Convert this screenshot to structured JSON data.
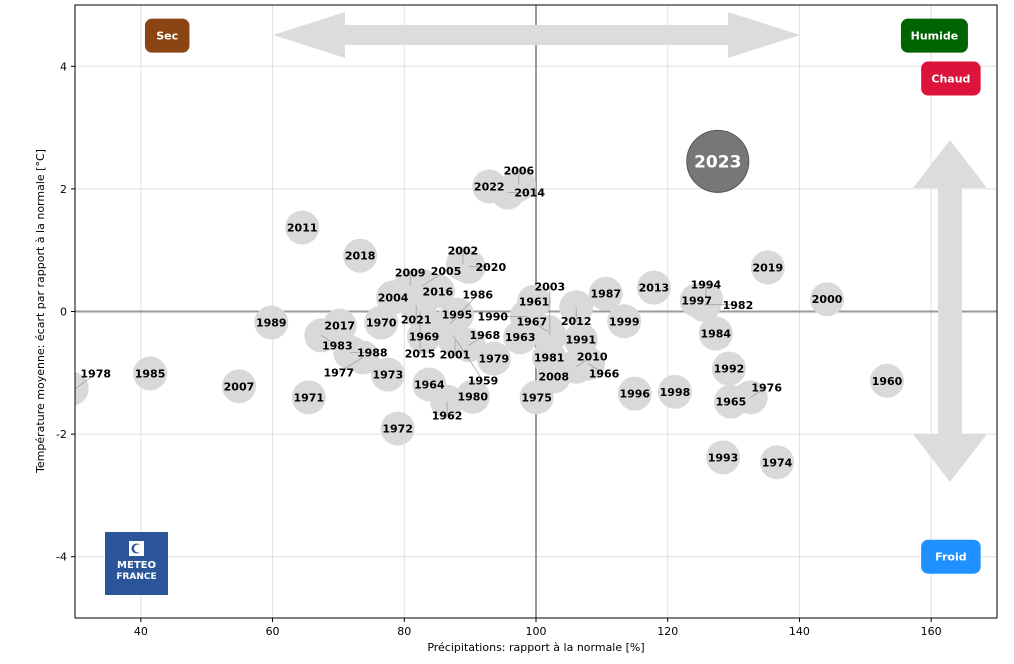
{
  "chart_data": {
    "type": "scatter",
    "title": "",
    "xlabel": "Précipitations: rapport à la normale [%]",
    "ylabel": "Température moyenne: écart par rapport à la normale [°C]",
    "xlim": [
      30,
      170
    ],
    "ylim": [
      -5,
      5
    ],
    "xticks": [
      40,
      60,
      80,
      100,
      120,
      140,
      160
    ],
    "yticks": [
      -4,
      -2,
      0,
      2,
      4
    ],
    "grid": true,
    "reference_lines": {
      "x": 100,
      "y": 0
    },
    "highlight": {
      "year": "2023",
      "x": 127.6,
      "y": 2.45,
      "color": "#777777"
    },
    "point_color": "#d9d9d9",
    "points": [
      {
        "year": "2022",
        "x": 92.9,
        "y": 2.04
      },
      {
        "year": "2006",
        "x": 97.4,
        "y": 2.07
      },
      {
        "year": "2014",
        "x": 95.7,
        "y": 1.94
      },
      {
        "year": "2011",
        "x": 64.5,
        "y": 1.37
      },
      {
        "year": "2018",
        "x": 73.3,
        "y": 0.91
      },
      {
        "year": "2002",
        "x": 88.9,
        "y": 0.77
      },
      {
        "year": "2020",
        "x": 89.8,
        "y": 0.73
      },
      {
        "year": "2019",
        "x": 135.2,
        "y": 0.72
      },
      {
        "year": "2013",
        "x": 117.9,
        "y": 0.39
      },
      {
        "year": "1987",
        "x": 110.6,
        "y": 0.29
      },
      {
        "year": "1997",
        "x": 124.4,
        "y": 0.18
      },
      {
        "year": "1994",
        "x": 125.8,
        "y": 0.21
      },
      {
        "year": "1982",
        "x": 125.5,
        "y": 0.11
      },
      {
        "year": "2000",
        "x": 144.2,
        "y": 0.2
      },
      {
        "year": "1961",
        "x": 99.7,
        "y": 0.16
      },
      {
        "year": "2012",
        "x": 106.1,
        "y": 0.07
      },
      {
        "year": "1999",
        "x": 113.4,
        "y": -0.16
      },
      {
        "year": "1984",
        "x": 127.3,
        "y": -0.36
      },
      {
        "year": "2009",
        "x": 80.9,
        "y": 0.41
      },
      {
        "year": "2004",
        "x": 78.3,
        "y": 0.23
      },
      {
        "year": "2005",
        "x": 82.7,
        "y": 0.42
      },
      {
        "year": "2016",
        "x": 85.1,
        "y": 0.33
      },
      {
        "year": "2021",
        "x": 81.8,
        "y": 0.1
      },
      {
        "year": "2015",
        "x": 82.4,
        "y": 0.0
      },
      {
        "year": "1995",
        "x": 88.0,
        "y": -0.05
      },
      {
        "year": "1986",
        "x": 86.9,
        "y": -0.21
      },
      {
        "year": "1970",
        "x": 76.5,
        "y": -0.18
      },
      {
        "year": "1989",
        "x": 59.8,
        "y": -0.18
      },
      {
        "year": "2017",
        "x": 70.2,
        "y": -0.23
      },
      {
        "year": "1983",
        "x": 67.4,
        "y": -0.39
      },
      {
        "year": "1969",
        "x": 83.0,
        "y": -0.41
      },
      {
        "year": "1959",
        "x": 87.4,
        "y": -0.39
      },
      {
        "year": "2001",
        "x": 87.7,
        "y": -0.47
      },
      {
        "year": "1968",
        "x": 89.8,
        "y": -0.55
      },
      {
        "year": "1990",
        "x": 98.6,
        "y": -0.08
      },
      {
        "year": "1963",
        "x": 97.6,
        "y": -0.42
      },
      {
        "year": "1967",
        "x": 101.8,
        "y": -0.33
      },
      {
        "year": "2003",
        "x": 102.1,
        "y": -0.39
      },
      {
        "year": "1991",
        "x": 106.8,
        "y": -0.46
      },
      {
        "year": "1979",
        "x": 93.6,
        "y": -0.77
      },
      {
        "year": "1981",
        "x": 102.0,
        "y": -0.75
      },
      {
        "year": "2010",
        "x": 106.1,
        "y": -0.9
      },
      {
        "year": "1966",
        "x": 107.9,
        "y": -0.85
      },
      {
        "year": "2008",
        "x": 102.7,
        "y": -1.06
      },
      {
        "year": "1988",
        "x": 71.8,
        "y": -0.67
      },
      {
        "year": "1977",
        "x": 73.7,
        "y": -0.75
      },
      {
        "year": "1973",
        "x": 77.5,
        "y": -1.03
      },
      {
        "year": "1985",
        "x": 41.4,
        "y": -1.01
      },
      {
        "year": "2007",
        "x": 54.9,
        "y": -1.22
      },
      {
        "year": "1971",
        "x": 65.5,
        "y": -1.4
      },
      {
        "year": "1964",
        "x": 83.8,
        "y": -1.19
      },
      {
        "year": "1962",
        "x": 86.5,
        "y": -1.47
      },
      {
        "year": "1980",
        "x": 90.4,
        "y": -1.39
      },
      {
        "year": "1975",
        "x": 100.1,
        "y": -1.4
      },
      {
        "year": "1996",
        "x": 115.0,
        "y": -1.34
      },
      {
        "year": "1998",
        "x": 121.1,
        "y": -1.31
      },
      {
        "year": "1992",
        "x": 129.3,
        "y": -0.93
      },
      {
        "year": "1965",
        "x": 129.6,
        "y": -1.47
      },
      {
        "year": "1976",
        "x": 132.6,
        "y": -1.4
      },
      {
        "year": "1960",
        "x": 153.3,
        "y": -1.13
      },
      {
        "year": "1972",
        "x": 79.0,
        "y": -1.91
      },
      {
        "year": "1993",
        "x": 128.4,
        "y": -2.38
      },
      {
        "year": "1974",
        "x": 136.6,
        "y": -2.46
      },
      {
        "year": "1978",
        "x": 29.5,
        "y": -1.26
      }
    ],
    "annotations": [
      {
        "label": "Sec",
        "x": 44,
        "y": 4.5,
        "color": "#8B4513"
      },
      {
        "label": "Humide",
        "x": 160.5,
        "y": 4.5,
        "color": "#006400"
      },
      {
        "label": "Chaud",
        "x": 163,
        "y": 3.8,
        "color": "#DC143C"
      },
      {
        "label": "Froid",
        "x": 163,
        "y": -4.0,
        "color": "#1E90FF"
      }
    ],
    "arrow_color": "#dcdcdc"
  },
  "logo": {
    "line1": "METEO",
    "line2": "FRANCE",
    "color": "#2a5599"
  }
}
